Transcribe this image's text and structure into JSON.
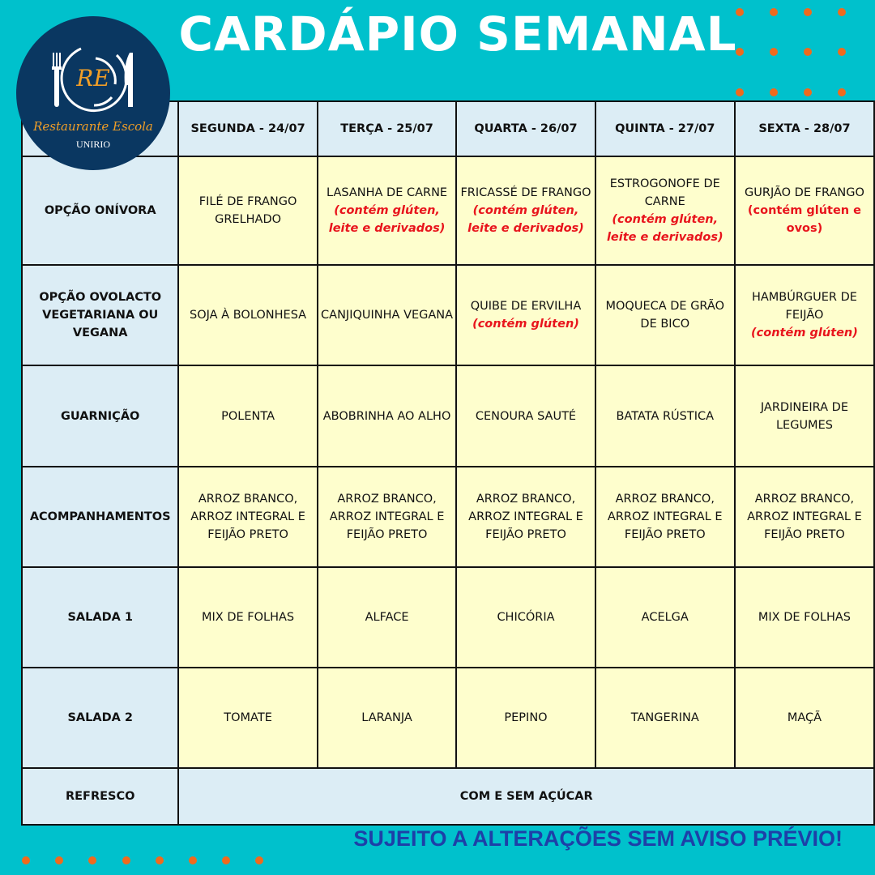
{
  "title": "CARDÁPIO SEMANAL",
  "logo": {
    "initials": "RE",
    "name": "Restaurante Escola",
    "institution": "UNIRIO"
  },
  "colors": {
    "background": "#00c1cc",
    "dots": "#f06a1d",
    "header_cell": "#dcedf5",
    "menu_cell": "#fefecd",
    "allergen": "#e8141c",
    "footer": "#1d40a8"
  },
  "days": [
    "SEGUNDA - 24/07",
    "TERÇA - 25/07",
    "QUARTA - 26/07",
    "QUINTA - 27/07",
    "SEXTA - 28/07"
  ],
  "rows": [
    {
      "label": "OPÇÃO ONÍVORA",
      "cells": [
        {
          "name": "FILÉ DE FRANGO GRELHADO"
        },
        {
          "name": "LASANHA DE CARNE",
          "allergen": "(contém glúten, leite e derivados)",
          "italic": true
        },
        {
          "name": "FRICASSÉ DE FRANGO",
          "allergen": "(contém glúten, leite e derivados)",
          "italic": true
        },
        {
          "name": "ESTROGONOFE DE CARNE",
          "allergen": "(contém glúten, leite e derivados)",
          "italic": true
        },
        {
          "name": "GURJÃO DE FRANGO",
          "allergen": "(contém glúten e ovos)",
          "italic": false
        }
      ]
    },
    {
      "label": "OPÇÃO OVOLACTO VEGETARIANA OU VEGANA",
      "cells": [
        {
          "name": "SOJA À BOLONHESA"
        },
        {
          "name": "CANJIQUINHA VEGANA"
        },
        {
          "name": "QUIBE DE ERVILHA",
          "allergen": "(contém glúten)",
          "italic": true
        },
        {
          "name": "MOQUECA DE GRÃO DE BICO"
        },
        {
          "name": "HAMBÚRGUER DE FEIJÃO",
          "allergen": "(contém glúten)",
          "italic": true
        }
      ]
    },
    {
      "label": "GUARNIÇÃO",
      "cells": [
        {
          "name": "POLENTA"
        },
        {
          "name": "ABOBRINHA AO ALHO"
        },
        {
          "name": "CENOURA SAUTÉ"
        },
        {
          "name": "BATATA RÚSTICA"
        },
        {
          "name": "JARDINEIRA DE LEGUMES"
        }
      ]
    },
    {
      "label": "ACOMPANHAMENTOS",
      "cells": [
        {
          "name": "ARROZ BRANCO, ARROZ INTEGRAL E FEIJÃO PRETO"
        },
        {
          "name": "ARROZ BRANCO, ARROZ INTEGRAL E FEIJÃO PRETO"
        },
        {
          "name": "ARROZ BRANCO, ARROZ INTEGRAL E FEIJÃO PRETO"
        },
        {
          "name": "ARROZ BRANCO, ARROZ INTEGRAL E FEIJÃO PRETO"
        },
        {
          "name": "ARROZ BRANCO, ARROZ INTEGRAL E FEIJÃO PRETO"
        }
      ]
    },
    {
      "label": "SALADA 1",
      "cells": [
        {
          "name": "MIX DE FOLHAS"
        },
        {
          "name": "ALFACE"
        },
        {
          "name": "CHICÓRIA"
        },
        {
          "name": "ACELGA"
        },
        {
          "name": "MIX DE FOLHAS"
        }
      ]
    },
    {
      "label": "SALADA 2",
      "cells": [
        {
          "name": "TOMATE"
        },
        {
          "name": "LARANJA"
        },
        {
          "name": "PEPINO"
        },
        {
          "name": "TANGERINA"
        },
        {
          "name": "MAÇÃ"
        }
      ]
    }
  ],
  "drink": {
    "label": "REFRESCO",
    "value": "COM E SEM AÇÚCAR"
  },
  "footer": "SUJEITO A ALTERAÇÕES SEM AVISO PRÉVIO!"
}
